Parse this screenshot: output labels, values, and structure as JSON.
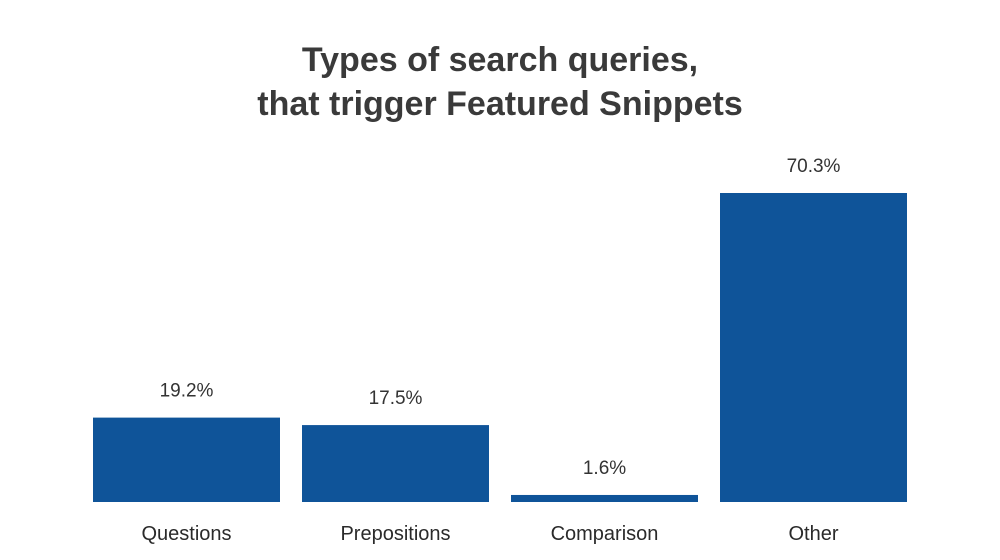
{
  "chart_data": {
    "type": "bar",
    "title_lines": [
      "Types of search queries,",
      "that trigger Featured Snippets"
    ],
    "categories": [
      "Questions",
      "Prepositions",
      "Comparison",
      "Other"
    ],
    "values": [
      19.2,
      17.5,
      1.6,
      70.3
    ],
    "value_labels": [
      "19.2%",
      "17.5%",
      "1.6%",
      "70.3%"
    ],
    "ylim": [
      0,
      70.3
    ],
    "grid": false,
    "legend": "none",
    "bar_color": "#0f5499"
  }
}
